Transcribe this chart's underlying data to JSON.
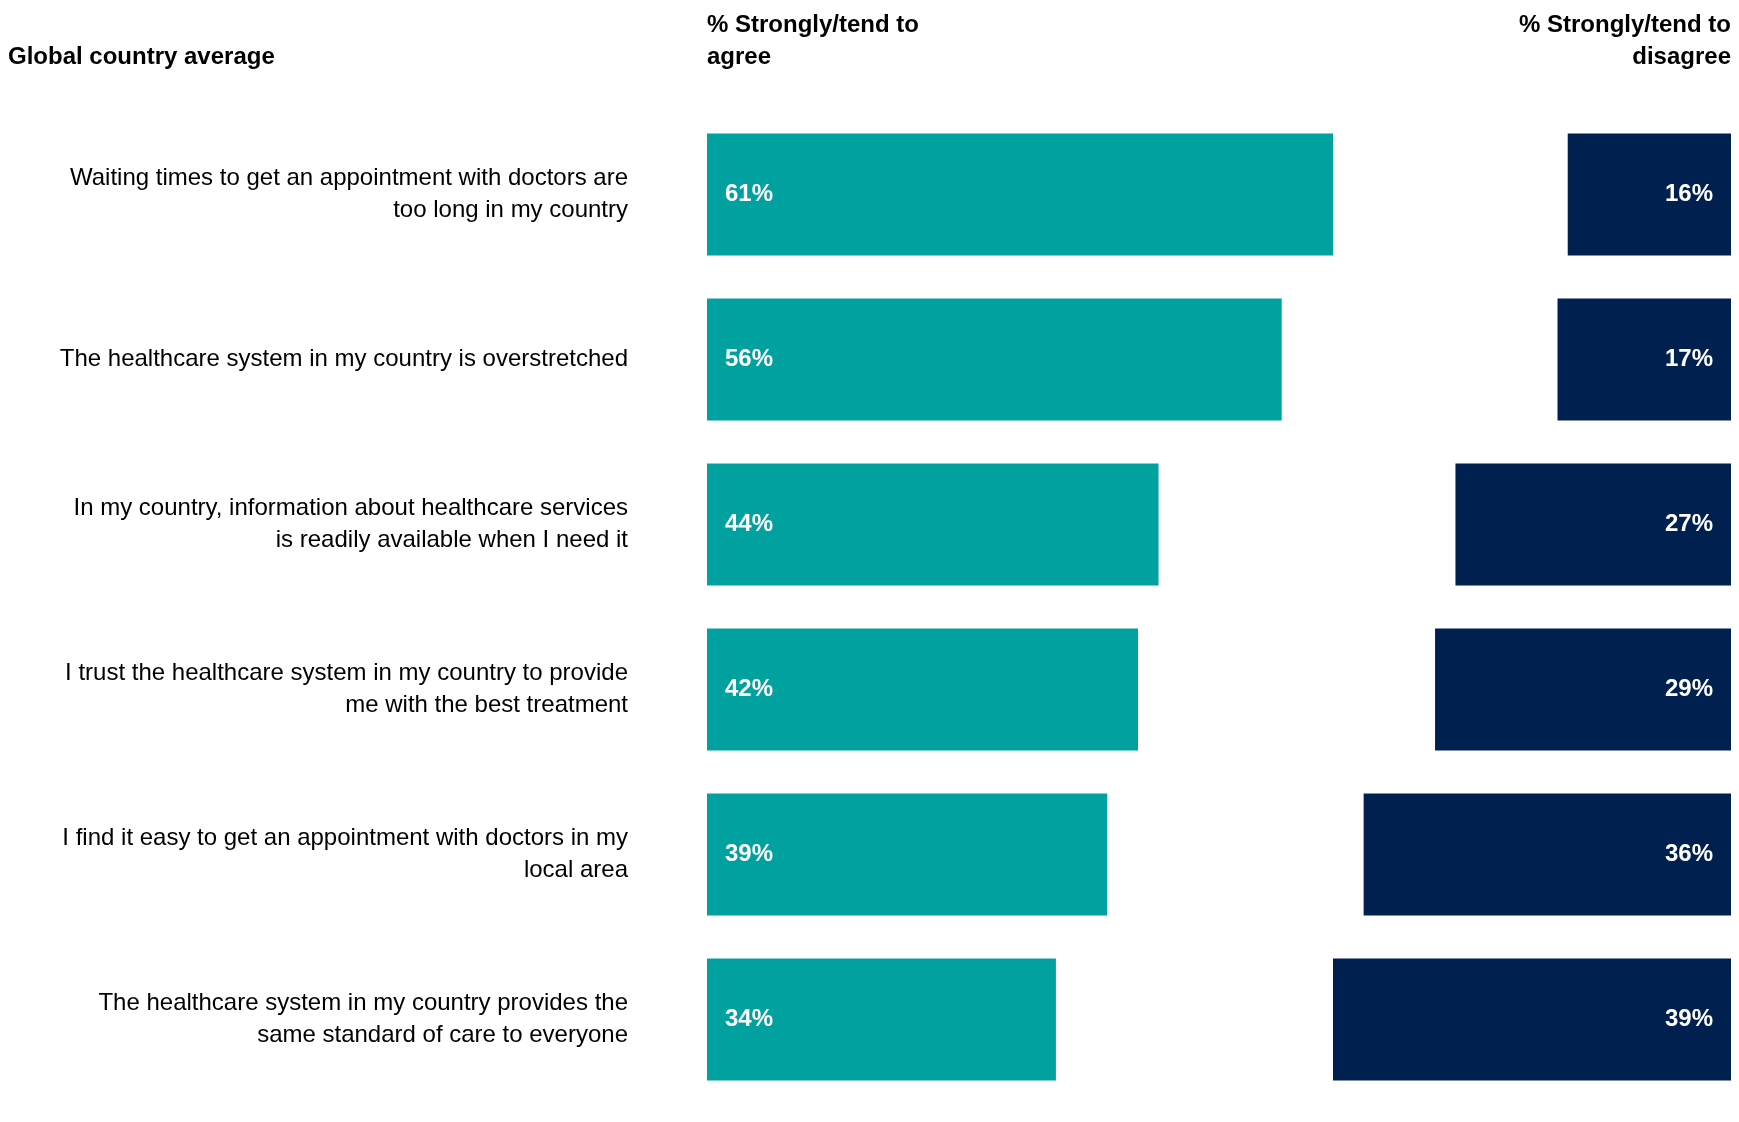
{
  "chart_data": [
    {
      "type": "bar",
      "orientation": "horizontal",
      "title": "% Strongly/tend to agree",
      "annotations": [
        "Global country average"
      ],
      "categories": [
        "Waiting times to get an appointment with doctors are too long in my country",
        "The healthcare system in my country is overstretched",
        "In my country, information about healthcare services is readily available when I need it",
        "I trust the healthcare system in my country to provide me with the best treatment",
        "I find it easy to get an appointment with doctors in my local area",
        "The healthcare system in my country provides the same standard of care to everyone"
      ],
      "values": [
        61,
        56,
        44,
        42,
        39,
        34
      ],
      "value_labels": [
        "61%",
        "56%",
        "44%",
        "42%",
        "39%",
        "34%"
      ],
      "color": "#00a19e",
      "tick_labels": "y",
      "legend": false
    },
    {
      "type": "bar",
      "orientation": "horizontal",
      "title": "% Strongly/tend to disagree",
      "categories": [
        null,
        null,
        null,
        null,
        null,
        null
      ],
      "values": [
        16,
        17,
        27,
        29,
        36,
        39
      ],
      "value_labels": [
        "16%",
        "17%",
        "27%",
        "29%",
        "36%",
        "39%"
      ],
      "color": "#002050",
      "tick_labels": false,
      "legend": false
    }
  ]
}
